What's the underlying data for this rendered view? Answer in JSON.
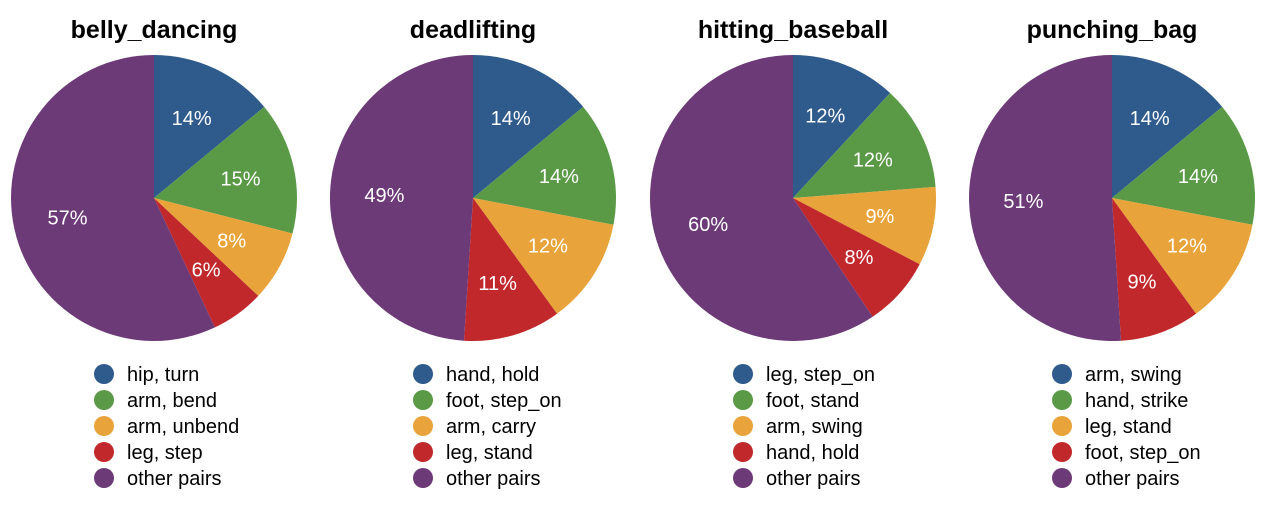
{
  "colors": {
    "blue": "#2e5a8c",
    "green": "#5a9a46",
    "orange": "#e8a33a",
    "red": "#c0282b",
    "purple": "#6d3a78"
  },
  "chart_data": [
    {
      "type": "pie",
      "title": "belly_dancing",
      "labels": [
        "hip, turn",
        "arm, bend",
        "arm, unbend",
        "leg, step",
        "other pairs"
      ],
      "values": [
        14,
        15,
        8,
        6,
        57
      ],
      "value_labels": [
        "14%",
        "15%",
        "8%",
        "6%",
        "57%"
      ],
      "colors": [
        "#2e5a8c",
        "#5a9a46",
        "#e8a33a",
        "#c0282b",
        "#6d3a78"
      ],
      "start_angle": "12 o'clock",
      "direction": "clockwise",
      "legend_position": "bottom"
    },
    {
      "type": "pie",
      "title": "deadlifting",
      "labels": [
        "hand, hold",
        "foot, step_on",
        "arm, carry",
        "leg, stand",
        "other pairs"
      ],
      "values": [
        14,
        14,
        12,
        11,
        49
      ],
      "value_labels": [
        "14%",
        "14%",
        "12%",
        "11%",
        "49%"
      ],
      "colors": [
        "#2e5a8c",
        "#5a9a46",
        "#e8a33a",
        "#c0282b",
        "#6d3a78"
      ],
      "start_angle": "12 o'clock",
      "direction": "clockwise",
      "legend_position": "bottom"
    },
    {
      "type": "pie",
      "title": "hitting_baseball",
      "labels": [
        "leg, step_on",
        "foot, stand",
        "arm, swing",
        "hand, hold",
        "other pairs"
      ],
      "values": [
        12,
        12,
        9,
        8,
        60
      ],
      "value_labels": [
        "12%",
        "12%",
        "9%",
        "8%",
        "60%"
      ],
      "colors": [
        "#2e5a8c",
        "#5a9a46",
        "#e8a33a",
        "#c0282b",
        "#6d3a78"
      ],
      "start_angle": "12 o'clock",
      "direction": "clockwise",
      "legend_position": "bottom"
    },
    {
      "type": "pie",
      "title": "punching_bag",
      "labels": [
        "arm, swing",
        "hand, strike",
        "leg, stand",
        "foot, step_on",
        "other pairs"
      ],
      "values": [
        14,
        14,
        12,
        9,
        51
      ],
      "value_labels": [
        "14%",
        "14%",
        "12%",
        "9%",
        "51%"
      ],
      "colors": [
        "#2e5a8c",
        "#5a9a46",
        "#e8a33a",
        "#c0282b",
        "#6d3a78"
      ],
      "start_angle": "12 o'clock",
      "direction": "clockwise",
      "legend_position": "bottom"
    }
  ]
}
